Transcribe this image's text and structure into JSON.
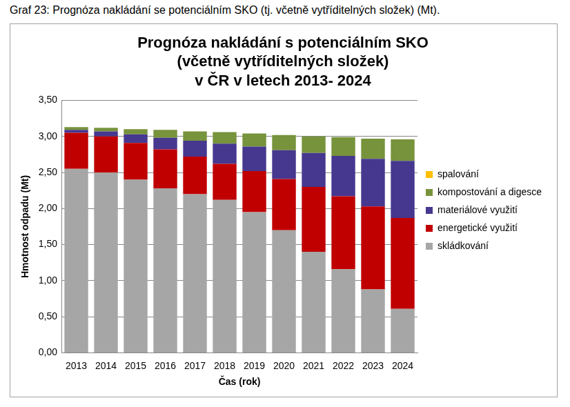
{
  "caption": "Graf 23: Prognóza nakládání se potenciálním SKO (tj. včetně vytříditelných složek) (Mt).",
  "chart_data": {
    "type": "bar",
    "title": [
      "Prognóza nakládání s potenciálním SKO",
      "(včetně vytříditelných složek)",
      "v ČR v letech 2013- 2024"
    ],
    "x_label": "Čas (rok)",
    "y_label": "Hmotnost odpadu (Mt)",
    "categories": [
      "2013",
      "2014",
      "2015",
      "2016",
      "2017",
      "2018",
      "2019",
      "2020",
      "2021",
      "2022",
      "2023",
      "2024"
    ],
    "stacked": true,
    "grid": true,
    "legend": "right",
    "ylim": [
      0,
      3.5
    ],
    "yticks": [
      {
        "value": 0,
        "label": "0,00"
      },
      {
        "value": 0.5,
        "label": "0,50"
      },
      {
        "value": 1,
        "label": "1,00"
      },
      {
        "value": 1.5,
        "label": "1,50"
      },
      {
        "value": 2,
        "label": "2,00"
      },
      {
        "value": 2.5,
        "label": "2,50"
      },
      {
        "value": 3,
        "label": "3,00"
      },
      {
        "value": 3.5,
        "label": "3,50"
      }
    ],
    "series": [
      {
        "name": "skládkování",
        "color": "#a6a6a6",
        "values": [
          2.55,
          2.5,
          2.4,
          2.28,
          2.2,
          2.12,
          1.95,
          1.7,
          1.4,
          1.16,
          0.88,
          0.61
        ]
      },
      {
        "name": "energetické využití",
        "color": "#c00000",
        "values": [
          0.5,
          0.5,
          0.51,
          0.54,
          0.52,
          0.5,
          0.57,
          0.71,
          0.9,
          1.01,
          1.15,
          1.26
        ]
      },
      {
        "name": "materiálové využití",
        "color": "#46378f",
        "values": [
          0.04,
          0.07,
          0.12,
          0.16,
          0.22,
          0.28,
          0.34,
          0.4,
          0.47,
          0.56,
          0.66,
          0.79
        ]
      },
      {
        "name": "kompostování a digesce",
        "color": "#77933c",
        "values": [
          0.04,
          0.05,
          0.07,
          0.11,
          0.13,
          0.16,
          0.18,
          0.21,
          0.23,
          0.26,
          0.28,
          0.3
        ]
      },
      {
        "name": "spalování",
        "color": "#ffc000",
        "values": [
          0,
          0,
          0,
          0,
          0,
          0,
          0,
          0,
          0,
          0,
          0,
          0
        ]
      }
    ]
  }
}
